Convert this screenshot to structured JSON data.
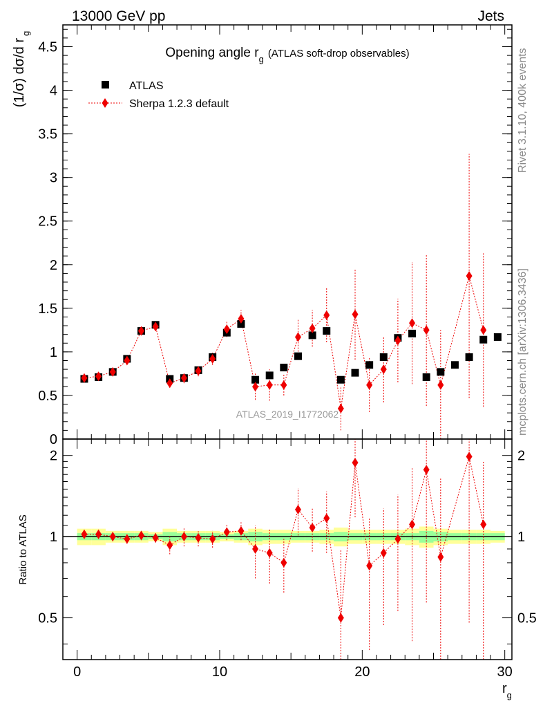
{
  "header": {
    "left": "13000 GeV pp",
    "right": "Jets"
  },
  "side_text": {
    "rivet": "Rivet 3.1.10,  400k events",
    "mcplots": "mcplots.cern.ch [arXiv:1306.3436]"
  },
  "watermark": "ATLAS_2019_I1772062",
  "chart_data": [
    {
      "panel": "main",
      "type": "scatter",
      "title": "Opening angle r",
      "title_sub": "g",
      "title_extra": "(ATLAS soft-drop observables)",
      "ylabel": "(1/σ) dσ/d r",
      "ylabel_sub": "g",
      "xlim": [
        -1,
        30.5
      ],
      "ylim": [
        0,
        4.75
      ],
      "x_ticks": [
        0,
        10,
        20,
        30
      ],
      "y_ticks": [
        0,
        0.5,
        1,
        1.5,
        2,
        2.5,
        3,
        3.5,
        4,
        4.5
      ],
      "y_tick_labels": [
        "0",
        "0.5",
        "1",
        "1.5",
        "2",
        "2.5",
        "3",
        "3.5",
        "4",
        "4.5"
      ],
      "legend_position": "top-left",
      "legend": [
        "ATLAS",
        "Sherpa 1.2.3 default"
      ],
      "series": [
        {
          "name": "ATLAS",
          "color": "#000000",
          "marker": "square",
          "x": [
            0.5,
            1.5,
            2.5,
            3.5,
            4.5,
            5.5,
            6.5,
            7.5,
            8.5,
            9.5,
            10.5,
            11.5,
            12.5,
            13.5,
            14.5,
            15.5,
            16.5,
            17.5,
            18.5,
            19.5,
            20.5,
            21.5,
            22.5,
            23.5,
            24.5,
            25.5,
            26.5,
            27.5,
            28.5,
            29.5
          ],
          "y": [
            0.69,
            0.71,
            0.77,
            0.92,
            1.24,
            1.31,
            0.69,
            0.7,
            0.79,
            0.94,
            1.22,
            1.32,
            0.68,
            0.73,
            0.82,
            0.95,
            1.19,
            1.24,
            0.68,
            0.76,
            0.85,
            0.94,
            1.16,
            1.21,
            0.71,
            0.77,
            0.85,
            0.94,
            1.14,
            1.17
          ]
        },
        {
          "name": "Sherpa 1.2.3 default",
          "color": "#ee0000",
          "marker": "diamond",
          "line": "dotted",
          "x": [
            0.5,
            1.5,
            2.5,
            3.5,
            4.5,
            5.5,
            6.5,
            7.5,
            8.5,
            9.5,
            10.5,
            11.5,
            12.5,
            13.5,
            14.5,
            15.5,
            16.5,
            17.5,
            18.5,
            19.5,
            20.5,
            21.5,
            22.5,
            23.5,
            24.5,
            25.5,
            27.5,
            28.5
          ],
          "y": [
            0.7,
            0.72,
            0.77,
            0.9,
            1.24,
            1.29,
            0.64,
            0.7,
            0.78,
            0.92,
            1.26,
            1.38,
            0.6,
            0.62,
            0.62,
            1.17,
            1.27,
            1.42,
            0.35,
            1.43,
            0.62,
            0.8,
            1.13,
            1.33,
            1.25,
            0.62,
            1.87,
            1.25
          ],
          "err": [
            0.03,
            0.03,
            0.03,
            0.04,
            0.05,
            0.05,
            0.05,
            0.06,
            0.06,
            0.07,
            0.09,
            0.1,
            0.15,
            0.18,
            0.12,
            0.2,
            0.21,
            0.31,
            0.25,
            0.52,
            0.31,
            0.38,
            0.48,
            0.7,
            0.87,
            0.63,
            1.4,
            0.88
          ]
        }
      ]
    },
    {
      "panel": "ratio",
      "type": "scatter",
      "ylabel": "Ratio to ATLAS",
      "xlabel": "r",
      "xlabel_sub": "g",
      "xlim": [
        -1,
        30.5
      ],
      "ylim": [
        0.35,
        2.3
      ],
      "y_scale": "log",
      "x_ticks": [
        0,
        10,
        20,
        30
      ],
      "x_tick_labels": [
        "0",
        "10",
        "20",
        "30"
      ],
      "y_ticks": [
        0.5,
        1,
        2
      ],
      "y_tick_labels": [
        "0.5",
        "1",
        "2"
      ],
      "band_centers": [
        0.5,
        1.5,
        2.5,
        3.5,
        4.5,
        5.5,
        6.5,
        7.5,
        8.5,
        9.5,
        10.5,
        11.5,
        12.5,
        13.5,
        14.5,
        15.5,
        16.5,
        17.5,
        18.5,
        19.5,
        20.5,
        21.5,
        22.5,
        23.5,
        24.5,
        25.5,
        26.5,
        27.5,
        28.5,
        29.5
      ],
      "band_yellow": [
        0.07,
        0.07,
        0.05,
        0.05,
        0.05,
        0.04,
        0.07,
        0.05,
        0.05,
        0.05,
        0.04,
        0.05,
        0.07,
        0.06,
        0.06,
        0.05,
        0.05,
        0.06,
        0.08,
        0.06,
        0.06,
        0.06,
        0.06,
        0.07,
        0.09,
        0.07,
        0.06,
        0.06,
        0.06,
        0.05
      ],
      "band_green": [
        0.03,
        0.03,
        0.03,
        0.03,
        0.03,
        0.02,
        0.04,
        0.03,
        0.03,
        0.03,
        0.02,
        0.03,
        0.04,
        0.03,
        0.03,
        0.03,
        0.03,
        0.03,
        0.04,
        0.03,
        0.03,
        0.03,
        0.03,
        0.03,
        0.05,
        0.04,
        0.03,
        0.03,
        0.03,
        0.03
      ],
      "band_colors": {
        "yellow": "#ffff99",
        "green": "#99ff99"
      },
      "series": [
        {
          "name": "Sherpa 1.2.3 default",
          "color": "#ee0000",
          "x": [
            0.5,
            1.5,
            2.5,
            3.5,
            4.5,
            5.5,
            6.5,
            7.5,
            8.5,
            9.5,
            10.5,
            11.5,
            12.5,
            13.5,
            14.5,
            15.5,
            16.5,
            17.5,
            18.5,
            19.5,
            20.5,
            21.5,
            22.5,
            23.5,
            24.5,
            25.5,
            27.5,
            28.5
          ],
          "y": [
            1.02,
            1.02,
            1.0,
            0.98,
            1.01,
            0.99,
            0.93,
            1.0,
            0.99,
            0.98,
            1.04,
            1.05,
            0.9,
            0.87,
            0.8,
            1.26,
            1.08,
            1.17,
            0.5,
            1.88,
            0.78,
            0.87,
            0.98,
            1.11,
            1.77,
            0.84,
            1.98,
            1.11
          ],
          "err": [
            0.04,
            0.04,
            0.04,
            0.04,
            0.04,
            0.04,
            0.07,
            0.08,
            0.07,
            0.07,
            0.07,
            0.08,
            0.2,
            0.2,
            0.18,
            0.25,
            0.2,
            0.3,
            0.4,
            0.7,
            0.4,
            0.4,
            0.45,
            0.7,
            1.2,
            0.8,
            1.5,
            0.8
          ]
        }
      ]
    }
  ]
}
